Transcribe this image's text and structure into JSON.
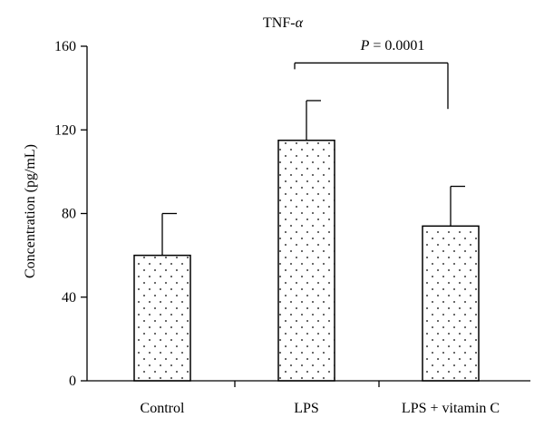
{
  "chart_data": {
    "type": "bar",
    "title": "TNF-α",
    "title_main": "TNF-",
    "title_greek": "α",
    "xlabel": "",
    "ylabel": "Concentration (pg/mL)",
    "categories": [
      "Control",
      "LPS",
      "LPS + vitamin C"
    ],
    "values": [
      60,
      115,
      74
    ],
    "errors": [
      20,
      19,
      19
    ],
    "ylim": [
      0,
      160
    ],
    "yticks": [
      0,
      40,
      80,
      120,
      160
    ],
    "bar_fill": "dotted pattern",
    "annotation": {
      "text": "P = 0.0001",
      "p_letter": "P",
      "p_rest": " = 0.0001",
      "from_category": 1,
      "to_category": 2,
      "level": 152
    }
  },
  "colors": {
    "axis": "#000000",
    "bar_stroke": "#000000",
    "bar_fill": "#ffffff",
    "dots": "#000000"
  }
}
